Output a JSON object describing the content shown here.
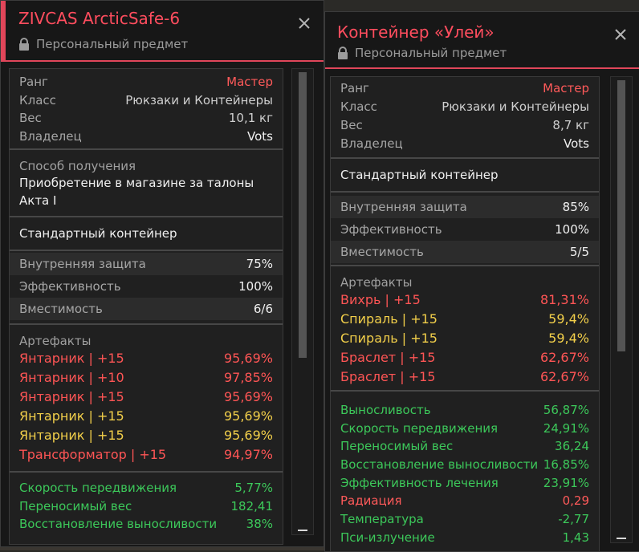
{
  "left": {
    "title": "ZIVCAS ArcticSafe-6",
    "subtitle": "Персональный предмет",
    "info": [
      {
        "label": "Ранг",
        "value": "Мастер",
        "style": "red"
      },
      {
        "label": "Класс",
        "value": "Рюкзаки и Контейнеры",
        "style": ""
      },
      {
        "label": "Вес",
        "value": "10,1 кг",
        "style": ""
      },
      {
        "label": "Владелец",
        "value": "Vots",
        "style": "white"
      }
    ],
    "acquisition_label": "Способ получения",
    "acquisition_text": "Приобретение в магазине за талоны Акта I",
    "container_type": "Стандартный контейнер",
    "props": [
      {
        "label": "Внутренняя защита",
        "value": "75%"
      },
      {
        "label": "Эффективность",
        "value": "100%"
      },
      {
        "label": "Вместимость",
        "value": "6/6"
      }
    ],
    "artifacts_label": "Артефакты",
    "artifacts": [
      {
        "name": "Янтарник | +15",
        "value": "95,69%",
        "color": "#ff5555"
      },
      {
        "name": "Янтарник | +10",
        "value": "97,85%",
        "color": "#ff5555"
      },
      {
        "name": "Янтарник | +15",
        "value": "95,69%",
        "color": "#ff5555"
      },
      {
        "name": "Янтарник | +15",
        "value": "95,69%",
        "color": "#f2cf4a"
      },
      {
        "name": "Янтарник | +15",
        "value": "95,69%",
        "color": "#f2cf4a"
      },
      {
        "name": "Трансформатор | +15",
        "value": "94,97%",
        "color": "#ff5555"
      }
    ],
    "stats": [
      {
        "name": "Скорость передвижения",
        "value": "5,77%",
        "color": "#3cc85a"
      },
      {
        "name": "Переносимый вес",
        "value": "182,41",
        "color": "#3cc85a"
      },
      {
        "name": "Восстановление выносливости",
        "value": "38%",
        "color": "#3cc85a"
      }
    ]
  },
  "right": {
    "title": "Контейнер «Улей»",
    "subtitle": "Персональный предмет",
    "info": [
      {
        "label": "Ранг",
        "value": "Мастер",
        "style": "red"
      },
      {
        "label": "Класс",
        "value": "Рюкзаки и Контейнеры",
        "style": ""
      },
      {
        "label": "Вес",
        "value": "8,7 кг",
        "style": ""
      },
      {
        "label": "Владелец",
        "value": "Vots",
        "style": "white"
      }
    ],
    "container_type": "Стандартный контейнер",
    "props": [
      {
        "label": "Внутренняя защита",
        "value": "85%"
      },
      {
        "label": "Эффективность",
        "value": "100%"
      },
      {
        "label": "Вместимость",
        "value": "5/5"
      }
    ],
    "artifacts_label": "Артефакты",
    "artifacts": [
      {
        "name": "Вихрь | +15",
        "value": "81,31%",
        "color": "#ff5555"
      },
      {
        "name": "Спираль | +15",
        "value": "59,4%",
        "color": "#f2cf4a"
      },
      {
        "name": "Спираль | +15",
        "value": "59,4%",
        "color": "#f2cf4a"
      },
      {
        "name": "Браслет | +15",
        "value": "62,67%",
        "color": "#ff5555"
      },
      {
        "name": "Браслет | +15",
        "value": "62,67%",
        "color": "#ff5555"
      }
    ],
    "stats": [
      {
        "name": "Выносливость",
        "value": "56,87%",
        "color": "#3cc85a"
      },
      {
        "name": "Скорость передвижения",
        "value": "24,91%",
        "color": "#3cc85a"
      },
      {
        "name": "Переносимый вес",
        "value": "36,24",
        "color": "#3cc85a"
      },
      {
        "name": "Восстановление выносливости",
        "value": "16,85%",
        "color": "#3cc85a"
      },
      {
        "name": "Эффективность лечения",
        "value": "23,91%",
        "color": "#3cc85a"
      },
      {
        "name": "Радиация",
        "value": "0,29",
        "color": "#ff5a5a"
      },
      {
        "name": "Температура",
        "value": "-2,77",
        "color": "#3cc85a"
      },
      {
        "name": "Пси-излучение",
        "value": "1,43",
        "color": "#3cc85a"
      }
    ]
  }
}
